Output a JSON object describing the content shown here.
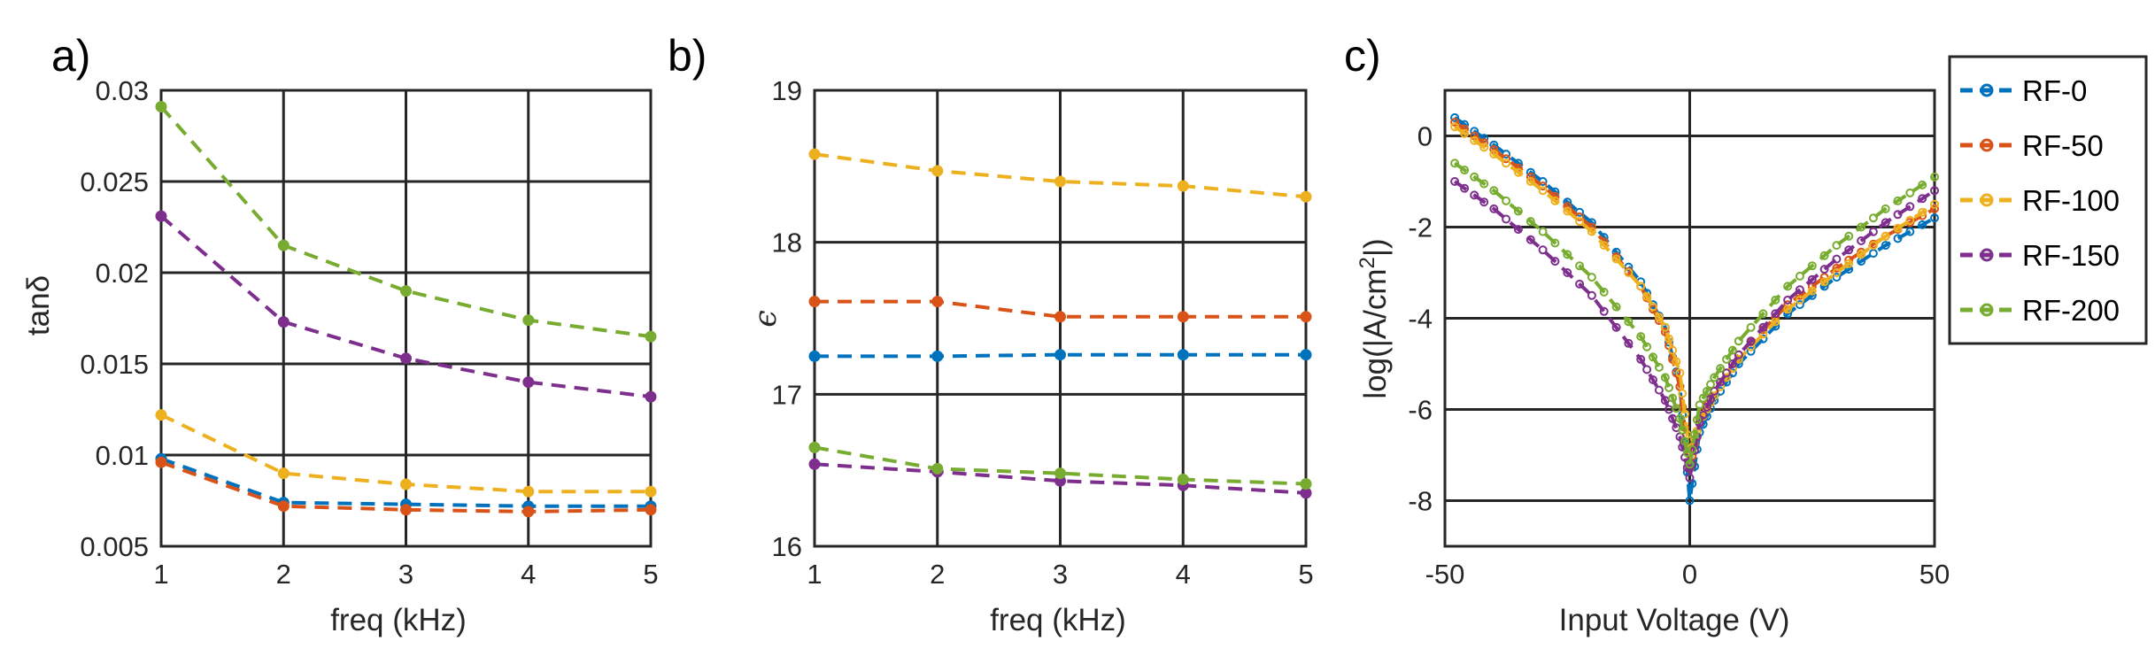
{
  "colors": {
    "RF-0": "#0072BD",
    "RF-50": "#D95319",
    "RF-100": "#EDB120",
    "RF-150": "#7E2F8E",
    "RF-200": "#77AC30"
  },
  "chart_data": [
    {
      "type": "line",
      "panel_label": "a)",
      "title": "",
      "xlabel": "freq (kHz)",
      "ylabel": "tanδ",
      "xlim": [
        1,
        5
      ],
      "ylim": [
        0.005,
        0.03
      ],
      "xticks": [
        "1",
        "2",
        "3",
        "4",
        "5"
      ],
      "yticks": [
        "0.005",
        "0.01",
        "0.015",
        "0.02",
        "0.025",
        "0.03"
      ],
      "x": [
        1,
        2,
        3,
        4,
        5
      ],
      "series": [
        {
          "name": "RF-0",
          "values": [
            0.0098,
            0.0074,
            0.0073,
            0.0072,
            0.0072
          ]
        },
        {
          "name": "RF-50",
          "values": [
            0.0096,
            0.0072,
            0.007,
            0.0069,
            0.007
          ]
        },
        {
          "name": "RF-100",
          "values": [
            0.0122,
            0.009,
            0.0084,
            0.008,
            0.008
          ]
        },
        {
          "name": "RF-150",
          "values": [
            0.0231,
            0.0173,
            0.0153,
            0.014,
            0.0132
          ]
        },
        {
          "name": "RF-200",
          "values": [
            0.0291,
            0.0215,
            0.019,
            0.0174,
            0.0165
          ]
        }
      ]
    },
    {
      "type": "line",
      "panel_label": "b)",
      "title": "",
      "xlabel": "freq (kHz)",
      "ylabel": "ϵ",
      "xlim": [
        1,
        5
      ],
      "ylim": [
        16,
        19
      ],
      "xticks": [
        "1",
        "2",
        "3",
        "4",
        "5"
      ],
      "yticks": [
        "16",
        "17",
        "18",
        "19"
      ],
      "x": [
        1,
        2,
        3,
        4,
        5
      ],
      "series": [
        {
          "name": "RF-0",
          "values": [
            17.25,
            17.25,
            17.26,
            17.26,
            17.26
          ]
        },
        {
          "name": "RF-50",
          "values": [
            17.61,
            17.61,
            17.51,
            17.51,
            17.51
          ]
        },
        {
          "name": "RF-100",
          "values": [
            18.58,
            18.47,
            18.4,
            18.37,
            18.3
          ]
        },
        {
          "name": "RF-150",
          "values": [
            16.54,
            16.49,
            16.43,
            16.4,
            16.35
          ]
        },
        {
          "name": "RF-200",
          "values": [
            16.65,
            16.51,
            16.48,
            16.44,
            16.41
          ]
        }
      ]
    },
    {
      "type": "line",
      "panel_label": "c)",
      "title": "",
      "xlabel": "Input Voltage (V)",
      "ylabel_main": "log(|A/cm",
      "ylabel_sup": "2",
      "ylabel_end": "|)",
      "xlim": [
        -50,
        50
      ],
      "ylim": [
        -9,
        1
      ],
      "xticks": [
        "-50",
        "0",
        "50"
      ],
      "yticks": [
        "-8",
        "-6",
        "-4",
        "-2",
        "0"
      ],
      "legend_position": "right",
      "series": [
        {
          "name": "RF-0",
          "x": [
            -48,
            -40,
            -30,
            -20,
            -10,
            -5,
            -2,
            0,
            2,
            5,
            10,
            20,
            30,
            40,
            50
          ],
          "values": [
            0.4,
            -0.2,
            -1.0,
            -1.9,
            -3.2,
            -4.2,
            -5.5,
            -8.0,
            -6.5,
            -5.8,
            -5.0,
            -3.9,
            -3.1,
            -2.4,
            -1.8
          ]
        },
        {
          "name": "RF-50",
          "x": [
            -48,
            -40,
            -30,
            -20,
            -10,
            -5,
            -2,
            0,
            2,
            5,
            10,
            20,
            30,
            40,
            50
          ],
          "values": [
            0.3,
            -0.3,
            -1.1,
            -2.0,
            -3.3,
            -4.3,
            -5.5,
            -7.3,
            -6.2,
            -5.6,
            -4.8,
            -3.7,
            -2.9,
            -2.2,
            -1.6
          ]
        },
        {
          "name": "RF-100",
          "x": [
            -48,
            -40,
            -30,
            -20,
            -10,
            -5,
            -2,
            0,
            2,
            5,
            10,
            20,
            30,
            40,
            50
          ],
          "values": [
            0.2,
            -0.4,
            -1.2,
            -2.1,
            -3.3,
            -4.2,
            -5.2,
            -7.0,
            -6.3,
            -5.7,
            -4.9,
            -3.8,
            -3.0,
            -2.2,
            -1.5
          ]
        },
        {
          "name": "RF-150",
          "x": [
            -48,
            -40,
            -30,
            -20,
            -10,
            -5,
            -2,
            0,
            2,
            5,
            10,
            20,
            30,
            40,
            50
          ],
          "values": [
            -1.0,
            -1.6,
            -2.5,
            -3.5,
            -4.9,
            -5.8,
            -6.6,
            -7.5,
            -6.3,
            -5.6,
            -4.8,
            -3.6,
            -2.7,
            -1.9,
            -1.2
          ]
        },
        {
          "name": "RF-200",
          "x": [
            -48,
            -40,
            -30,
            -20,
            -10,
            -5,
            -2,
            0,
            2,
            5,
            10,
            20,
            30,
            40,
            50
          ],
          "values": [
            -0.6,
            -1.2,
            -2.1,
            -3.1,
            -4.4,
            -5.3,
            -6.2,
            -7.2,
            -5.9,
            -5.3,
            -4.5,
            -3.3,
            -2.4,
            -1.6,
            -0.9
          ]
        }
      ]
    }
  ]
}
